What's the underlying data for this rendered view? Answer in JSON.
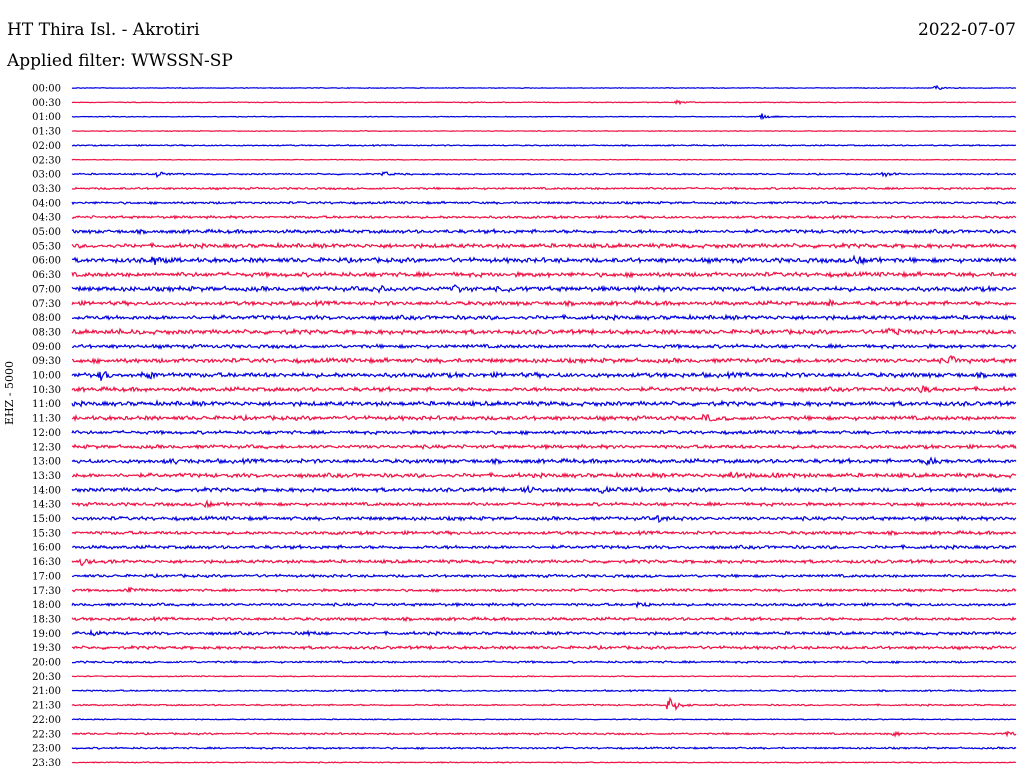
{
  "header": {
    "station": "HT Thira Isl. - Akrotiri",
    "date": "2022-07-07",
    "filter": "Applied filter: WWSSN-SP",
    "channel": "EHZ - 5000"
  },
  "colors": {
    "even_trace": "#0000dd",
    "odd_trace": "#ee1144"
  },
  "chart_data": {
    "type": "line",
    "title": "HT Thira Isl. - Akrotiri",
    "subtitle": "Applied filter: WWSSN-SP",
    "ylabel": "EHZ - 5000",
    "xlabel": "",
    "grid": false,
    "legend": "none",
    "categories": [
      "00:00",
      "00:30",
      "01:00",
      "01:30",
      "02:00",
      "02:30",
      "03:00",
      "03:30",
      "04:00",
      "04:30",
      "05:00",
      "05:30",
      "06:00",
      "06:30",
      "07:00",
      "07:30",
      "08:00",
      "08:30",
      "09:00",
      "09:30",
      "10:00",
      "10:30",
      "11:00",
      "11:30",
      "12:00",
      "12:30",
      "13:00",
      "13:30",
      "14:00",
      "14:30",
      "15:00",
      "15:30",
      "16:00",
      "16:30",
      "17:00",
      "17:30",
      "18:00",
      "18:30",
      "19:00",
      "19:30",
      "20:00",
      "20:30",
      "21:00",
      "21:30",
      "22:00",
      "22:30",
      "23:00",
      "23:30"
    ],
    "noise_level": [
      0.3,
      0.3,
      0.3,
      0.3,
      0.5,
      0.3,
      0.6,
      0.8,
      0.9,
      1.0,
      1.4,
      1.6,
      1.8,
      1.7,
      1.8,
      1.6,
      1.6,
      1.7,
      1.4,
      1.7,
      1.8,
      1.6,
      1.7,
      1.6,
      1.3,
      1.4,
      1.6,
      1.6,
      1.5,
      1.3,
      1.4,
      1.3,
      1.3,
      1.3,
      1.1,
      1.0,
      1.1,
      1.2,
      1.2,
      1.2,
      0.8,
      0.4,
      0.6,
      0.6,
      0.4,
      0.7,
      0.7,
      0.4
    ],
    "events": [
      {
        "row": 0,
        "t": 0.915,
        "amp": 3
      },
      {
        "row": 1,
        "t": 0.64,
        "amp": 3
      },
      {
        "row": 2,
        "t": 0.73,
        "amp": 4
      },
      {
        "row": 6,
        "t": 0.09,
        "amp": 3
      },
      {
        "row": 6,
        "t": 0.33,
        "amp": 3
      },
      {
        "row": 6,
        "t": 0.86,
        "amp": 3
      },
      {
        "row": 12,
        "t": 0.085,
        "amp": 5
      },
      {
        "row": 12,
        "t": 0.83,
        "amp": 4
      },
      {
        "row": 14,
        "t": 0.32,
        "amp": 4
      },
      {
        "row": 14,
        "t": 0.4,
        "amp": 6
      },
      {
        "row": 14,
        "t": 0.46,
        "amp": 3
      },
      {
        "row": 15,
        "t": 0.8,
        "amp": 3
      },
      {
        "row": 17,
        "t": 0.04,
        "amp": 3
      },
      {
        "row": 17,
        "t": 0.865,
        "amp": 4
      },
      {
        "row": 19,
        "t": 0.93,
        "amp": 4
      },
      {
        "row": 20,
        "t": 0.03,
        "amp": 4
      },
      {
        "row": 20,
        "t": 0.08,
        "amp": 4
      },
      {
        "row": 21,
        "t": 0.9,
        "amp": 4
      },
      {
        "row": 23,
        "t": 0.67,
        "amp": 4
      },
      {
        "row": 26,
        "t": 0.1,
        "amp": 3
      },
      {
        "row": 26,
        "t": 0.905,
        "amp": 5
      },
      {
        "row": 27,
        "t": 0.7,
        "amp": 5
      },
      {
        "row": 27,
        "t": 0.74,
        "amp": 4
      },
      {
        "row": 28,
        "t": 0.48,
        "amp": 3
      },
      {
        "row": 28,
        "t": 0.56,
        "amp": 3
      },
      {
        "row": 29,
        "t": 0.14,
        "amp": 3
      },
      {
        "row": 30,
        "t": 0.62,
        "amp": 3
      },
      {
        "row": 33,
        "t": 0.01,
        "amp": 4
      },
      {
        "row": 35,
        "t": 0.06,
        "amp": 4
      },
      {
        "row": 36,
        "t": 0.6,
        "amp": 4
      },
      {
        "row": 38,
        "t": 0.02,
        "amp": 4
      },
      {
        "row": 38,
        "t": 0.245,
        "amp": 3
      },
      {
        "row": 43,
        "t": 0.632,
        "amp": 12
      },
      {
        "row": 45,
        "t": 0.87,
        "amp": 4
      },
      {
        "row": 45,
        "t": 0.99,
        "amp": 3
      }
    ]
  }
}
